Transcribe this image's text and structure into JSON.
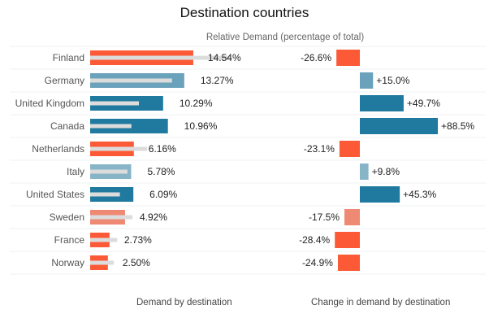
{
  "chart_data": {
    "type": "bar",
    "title": "Destination countries",
    "subtitle": "Relative Demand (percentage of total)",
    "categories": [
      "Finland",
      "Germany",
      "United Kingdom",
      "Canada",
      "Netherlands",
      "Italy",
      "United States",
      "Sweden",
      "France",
      "Norway"
    ],
    "series": [
      {
        "name": "Demand by destination",
        "unit": "%",
        "values": [
          14.54,
          13.27,
          10.29,
          10.96,
          6.16,
          5.78,
          6.09,
          4.92,
          2.73,
          2.5
        ],
        "labels": [
          "14.54%",
          "13.27%",
          "10.29%",
          "10.96%",
          "6.16%",
          "5.78%",
          "6.09%",
          "4.92%",
          "2.73%",
          "2.50%"
        ]
      },
      {
        "name": "Change in demand by destination",
        "unit": "%",
        "values": [
          -26.6,
          15.0,
          49.7,
          88.5,
          -23.1,
          9.8,
          45.3,
          -17.5,
          -28.4,
          -24.9
        ],
        "labels": [
          "-26.6%",
          "+15.0%",
          "+49.7%",
          "+88.5%",
          "-23.1%",
          "+9.8%",
          "+45.3%",
          "-17.5%",
          "-28.4%",
          "-24.9%"
        ]
      }
    ],
    "xlabel_left": "Demand by destination",
    "xlabel_right": "Change in demand by destination",
    "colors": {
      "strong_negative": "#fc5a37",
      "mild_negative": "#ee8a74",
      "strong_positive": "#20799e",
      "mild_positive_1": "#6aa2bc",
      "mild_positive_2": "#88b4c8",
      "prior_bar": "#dcdcdc",
      "separator": "#eef0f4"
    },
    "grid": false,
    "legend": "none"
  }
}
